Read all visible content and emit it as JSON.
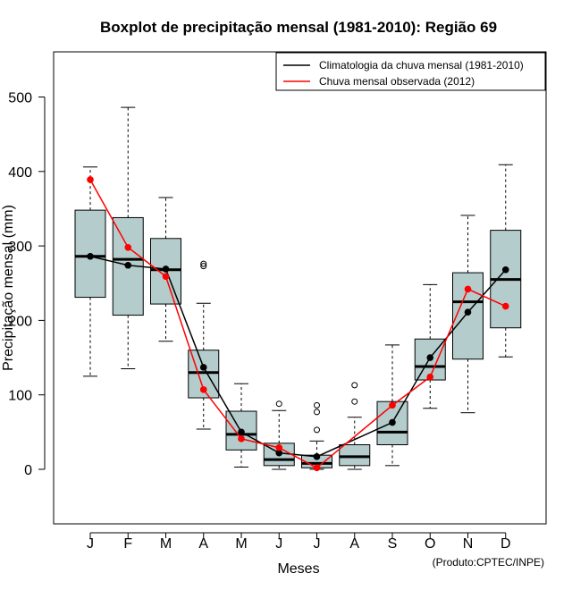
{
  "chart_data": {
    "type": "boxplot",
    "title": "Boxplot de precipitação mensal (1981-2010): Região 69",
    "xlabel": "Meses",
    "ylabel": "Precipitação mensal (mm)",
    "ylim": [
      -75,
      575
    ],
    "yticks": [
      0,
      100,
      200,
      300,
      400,
      500
    ],
    "categories": [
      "J",
      "F",
      "M",
      "A",
      "M",
      "J",
      "J",
      "A",
      "S",
      "O",
      "N",
      "D"
    ],
    "boxes": [
      {
        "min": 125,
        "q1": 231,
        "median": 286,
        "q3": 348,
        "max": 406,
        "outliers": []
      },
      {
        "min": 135,
        "q1": 207,
        "median": 282,
        "q3": 338,
        "max": 486,
        "outliers": []
      },
      {
        "min": 172,
        "q1": 222,
        "median": 268,
        "q3": 310,
        "max": 365,
        "outliers": []
      },
      {
        "min": 54,
        "q1": 96,
        "median": 130,
        "q3": 160,
        "max": 223,
        "outliers": [
          273,
          276
        ]
      },
      {
        "min": 3,
        "q1": 26,
        "median": 47,
        "q3": 78,
        "max": 115,
        "outliers": []
      },
      {
        "min": 0,
        "q1": 5,
        "median": 13,
        "q3": 35,
        "max": 79,
        "outliers": [
          88
        ]
      },
      {
        "min": 0,
        "q1": 2,
        "median": 8,
        "q3": 19,
        "max": 38,
        "outliers": [
          53,
          77,
          86
        ]
      },
      {
        "min": 0,
        "q1": 5,
        "median": 17,
        "q3": 33,
        "max": 70,
        "outliers": [
          91,
          113
        ]
      },
      {
        "min": 5,
        "q1": 33,
        "median": 50,
        "q3": 91,
        "max": 167,
        "outliers": []
      },
      {
        "min": 82,
        "q1": 120,
        "median": 138,
        "q3": 175,
        "max": 248,
        "outliers": []
      },
      {
        "min": 76,
        "q1": 148,
        "median": 225,
        "q3": 264,
        "max": 341,
        "outliers": []
      },
      {
        "min": 151,
        "q1": 190,
        "median": 255,
        "q3": 321,
        "max": 409,
        "outliers": []
      }
    ],
    "series": [
      {
        "name": "Climatologia da chuva mensal (1981-2010)",
        "color": "#000000",
        "values": [
          286,
          274,
          269,
          137,
          50,
          22,
          17,
          null,
          63,
          150,
          211,
          268
        ]
      },
      {
        "name": "Chuva mensal observada (2012)",
        "color": "#ff0000",
        "values": [
          389,
          298,
          259,
          107,
          41,
          29,
          2,
          null,
          86,
          124,
          242,
          219
        ]
      }
    ],
    "legend_position": "top-right",
    "box_color": "#b4cccc"
  },
  "credit": "(Produto:CPTEC/INPE)"
}
